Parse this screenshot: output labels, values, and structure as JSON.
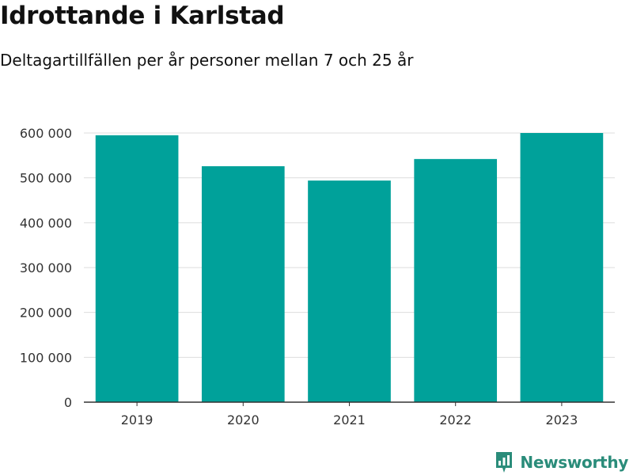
{
  "header": {
    "title": "Idrottande i Karlstad",
    "subtitle": "Deltagartillfällen per år personer mellan 7 och 25 år"
  },
  "brand": {
    "name": "Newsworthy",
    "icon": "newsworthy-logo-icon",
    "color": "#2a8c7a"
  },
  "chart_data": {
    "type": "bar",
    "title": "Idrottande i Karlstad",
    "subtitle": "Deltagartillfällen per år personer mellan 7 och 25 år",
    "xlabel": "",
    "ylabel": "",
    "categories": [
      "2019",
      "2020",
      "2021",
      "2022",
      "2023"
    ],
    "values": [
      595000,
      526000,
      494000,
      542000,
      600000
    ],
    "ylim": [
      0,
      600000
    ],
    "yticks": [
      0,
      100000,
      200000,
      300000,
      400000,
      500000,
      600000
    ],
    "ytick_labels": [
      "0",
      "100 000",
      "200 000",
      "300 000",
      "400 000",
      "500 000",
      "600 000"
    ],
    "grid": true,
    "bar_color": "#00a19a",
    "grid_color": "#dddddd",
    "axis_color": "#333333"
  }
}
